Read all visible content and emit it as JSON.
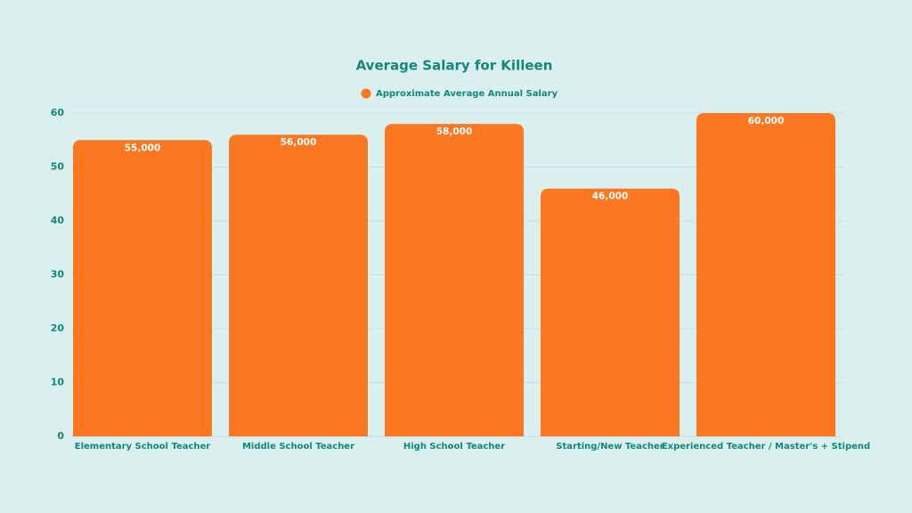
{
  "chart_data": {
    "type": "bar",
    "title": "Average Salary for Killeen",
    "categories": [
      "Elementary School Teacher",
      "Middle School Teacher",
      "High School Teacher",
      "Starting/New Teacher",
      "Experienced Teacher / Master's + Stipend"
    ],
    "series": [
      {
        "name": "Approximate Average Annual Salary",
        "color": "#fc7722",
        "values": [
          55,
          56,
          58,
          46,
          60
        ],
        "value_labels": [
          "55,000",
          "56,000",
          "58,000",
          "46,000",
          "60,000"
        ]
      }
    ],
    "ylim": [
      0,
      60
    ],
    "yticks": [
      0,
      10,
      20,
      30,
      40,
      50,
      60
    ],
    "grid": true,
    "legend": "top"
  }
}
